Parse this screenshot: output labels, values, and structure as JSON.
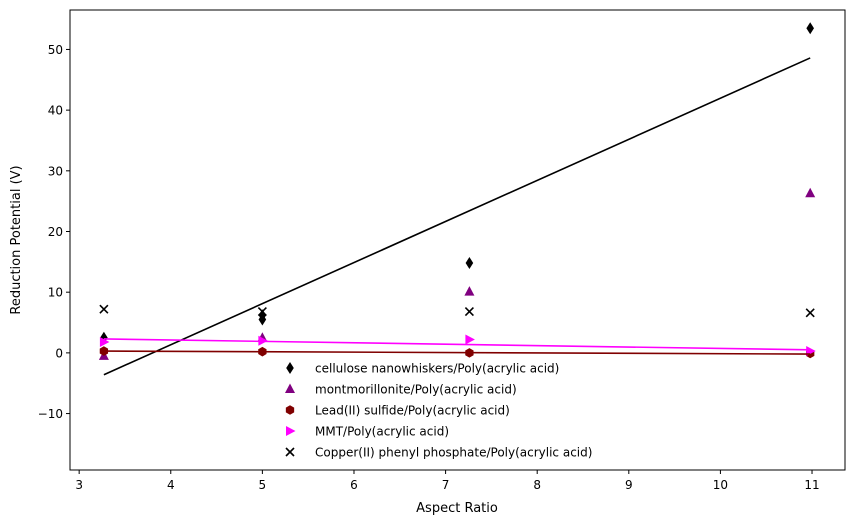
{
  "chart_data": {
    "type": "scatter",
    "title": "",
    "xlabel": "Aspect Ratio",
    "ylabel": "Reduction Potential (V)",
    "xlim": [
      2.9,
      11.36
    ],
    "ylim": [
      -19.3,
      56.5
    ],
    "xticks": [
      3,
      4,
      5,
      6,
      7,
      8,
      9,
      10,
      11
    ],
    "yticks": [
      -10,
      0,
      10,
      20,
      30,
      40,
      50
    ],
    "grid": false,
    "legend_position": "lower-center",
    "series": [
      {
        "name": "cellulose nanowhiskers/Poly(acrylic acid)",
        "marker": "thin-diamond",
        "color": "#000000",
        "x": [
          3.27,
          5.0,
          5.0,
          7.26,
          10.98
        ],
        "y": [
          2.5,
          5.5,
          6.2,
          14.8,
          53.5
        ],
        "fit": {
          "x": [
            3.27,
            10.98
          ],
          "y": [
            -3.6,
            48.6
          ]
        }
      },
      {
        "name": "montmorillonite/Poly(acrylic acid)",
        "marker": "triangle",
        "color": "#800080",
        "x": [
          3.27,
          5.0,
          7.26,
          10.98
        ],
        "y": [
          -0.5,
          2.5,
          10.1,
          26.3
        ]
      },
      {
        "name": "Lead(II) sulfide/Poly(acrylic acid)",
        "marker": "hexagon",
        "color": "#800000",
        "x": [
          3.27,
          5.0,
          7.26,
          10.98
        ],
        "y": [
          0.3,
          0.2,
          0.0,
          -0.1
        ],
        "fit": {
          "x": [
            3.27,
            10.98
          ],
          "y": [
            0.3,
            -0.2
          ]
        }
      },
      {
        "name": "MMT/Poly(acrylic acid)",
        "marker": "triangle-right",
        "color": "#ff00ff",
        "x": [
          3.27,
          5.0,
          7.26,
          10.98
        ],
        "y": [
          1.8,
          2.0,
          2.2,
          0.3
        ],
        "fit": {
          "x": [
            3.27,
            10.98
          ],
          "y": [
            2.3,
            0.5
          ]
        }
      },
      {
        "name": "Copper(II) phenyl phosphate/Poly(acrylic acid)",
        "marker": "x",
        "color": "#000000",
        "x": [
          3.27,
          5.0,
          7.26,
          10.98
        ],
        "y": [
          7.2,
          6.8,
          6.8,
          6.6
        ]
      }
    ]
  }
}
